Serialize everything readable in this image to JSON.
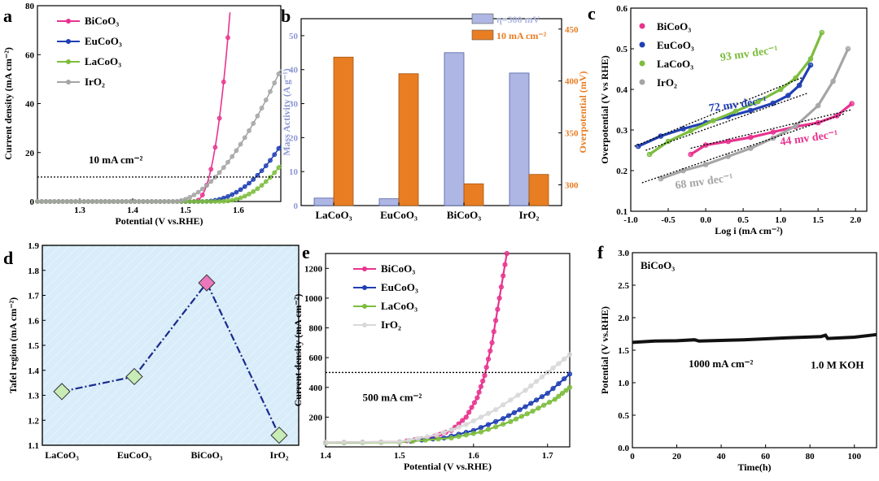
{
  "panels": [
    {
      "id": "a",
      "letter": "a",
      "type": "line",
      "xlabel": "Potential (V vs.RHE)",
      "ylabel": "Current density (mA cm⁻²)",
      "xlim": [
        1.22,
        1.68
      ],
      "ylim": [
        0,
        80
      ],
      "xticks": [
        1.3,
        1.4,
        1.5,
        1.6
      ],
      "yticks": [
        0,
        20,
        40,
        60,
        80
      ],
      "hline": 10,
      "annotation": {
        "text": "10 mA cm⁻²",
        "x": 1.24,
        "y": 17
      },
      "legend": {
        "position": "top-left",
        "entries": [
          "BiCoO₃",
          "EuCoO₃",
          "LaCoO₃",
          "IrO₂"
        ]
      },
      "series": [
        {
          "name": "BiCoO₃",
          "color": "#e8338f",
          "onset": 1.515,
          "end": 1.585,
          "final": 80,
          "exp": 2.4
        },
        {
          "name": "EuCoO₃",
          "color": "#1f3fb2",
          "onset": 1.53,
          "end": 1.68,
          "final": 23,
          "exp": 2.2
        },
        {
          "name": "LaCoO₃",
          "color": "#7dbd3e",
          "onset": 1.56,
          "end": 1.68,
          "final": 15,
          "exp": 2.3
        },
        {
          "name": "IrO₂",
          "color": "#a5a5a5",
          "onset": 1.48,
          "end": 1.68,
          "final": 54,
          "exp": 1.75
        }
      ]
    },
    {
      "id": "b",
      "letter": "b",
      "type": "bar",
      "categories": [
        "LaCoO₃",
        "EuCoO₃",
        "BiCoO₃",
        "IrO₂"
      ],
      "ylabel_left": "Mass Activity (A g⁻¹)",
      "ylabel_right": "Overpotential (mV)",
      "ylim_left": [
        0,
        55
      ],
      "ylim_right": [
        280,
        460
      ],
      "yticks_left": [
        0,
        10,
        20,
        30,
        40,
        50
      ],
      "yticks_right": [
        300,
        350,
        400,
        450
      ],
      "series": [
        {
          "name": "η=300 mV",
          "axis": "left",
          "values": [
            2.2,
            2.0,
            45,
            39
          ],
          "color": "#aeb6e3"
        },
        {
          "name": "10 mA cm⁻²",
          "axis": "right",
          "values": [
            423,
            407,
            301,
            310
          ],
          "color": "#e87d22"
        }
      ]
    },
    {
      "id": "c",
      "letter": "c",
      "type": "scatter",
      "xlabel": "Log i (mA cm⁻²)",
      "ylabel": "Overpotential (V vs RHE)",
      "xlim": [
        -1.0,
        2.15
      ],
      "ylim": [
        0.1,
        0.6
      ],
      "xticks": [
        -1.0,
        -0.5,
        0.0,
        0.5,
        1.0,
        1.5,
        2.0
      ],
      "yticks": [
        0.1,
        0.2,
        0.3,
        0.4,
        0.5,
        0.6
      ],
      "legend": {
        "position": "top-left",
        "entries": [
          "BiCoO₃",
          "EuCoO₃",
          "LaCoO₃",
          "IrO₂"
        ]
      },
      "series": [
        {
          "name": "BiCoO₃",
          "color": "#e8338f",
          "marker": "square",
          "points": [
            [
              -0.2,
              0.24
            ],
            [
              0.0,
              0.263
            ],
            [
              0.3,
              0.272
            ],
            [
              0.6,
              0.282
            ],
            [
              0.9,
              0.295
            ],
            [
              1.2,
              0.308
            ],
            [
              1.5,
              0.318
            ],
            [
              1.75,
              0.335
            ],
            [
              1.95,
              0.365
            ]
          ]
        },
        {
          "name": "EuCoO₃",
          "color": "#1f3fb2",
          "marker": "triangle-down",
          "points": [
            [
              -0.9,
              0.26
            ],
            [
              -0.6,
              0.285
            ],
            [
              -0.3,
              0.303
            ],
            [
              0.0,
              0.318
            ],
            [
              0.3,
              0.333
            ],
            [
              0.6,
              0.348
            ],
            [
              0.9,
              0.366
            ],
            [
              1.1,
              0.385
            ],
            [
              1.25,
              0.41
            ],
            [
              1.4,
              0.46
            ]
          ]
        },
        {
          "name": "LaCoO₃",
          "color": "#7dbd3e",
          "marker": "circle",
          "points": [
            [
              -0.75,
              0.24
            ],
            [
              -0.5,
              0.272
            ],
            [
              -0.2,
              0.298
            ],
            [
              0.1,
              0.323
            ],
            [
              0.4,
              0.346
            ],
            [
              0.7,
              0.37
            ],
            [
              1.0,
              0.4
            ],
            [
              1.2,
              0.428
            ],
            [
              1.4,
              0.475
            ],
            [
              1.55,
              0.54
            ]
          ]
        },
        {
          "name": "IrO₂",
          "color": "#a5a5a5",
          "marker": "triangle-up",
          "points": [
            [
              -0.6,
              0.18
            ],
            [
              -0.3,
              0.2
            ],
            [
              0.0,
              0.215
            ],
            [
              0.3,
              0.235
            ],
            [
              0.6,
              0.255
            ],
            [
              0.9,
              0.28
            ],
            [
              1.2,
              0.31
            ],
            [
              1.5,
              0.36
            ],
            [
              1.7,
              0.42
            ],
            [
              1.9,
              0.5
            ]
          ]
        }
      ],
      "fits": [
        {
          "from": [
            -0.2,
            0.255
          ],
          "to": [
            1.95,
            0.35
          ]
        },
        {
          "from": [
            -0.95,
            0.26
          ],
          "to": [
            1.3,
            0.43
          ]
        },
        {
          "from": [
            -0.8,
            0.25
          ],
          "to": [
            1.35,
            0.39
          ]
        },
        {
          "from": [
            -0.85,
            0.17
          ],
          "to": [
            1.85,
            0.34
          ]
        }
      ],
      "labels": [
        {
          "text": "93 mv dec⁻¹",
          "color": "#7dbd3e",
          "x": 0.2,
          "y": 0.47
        },
        {
          "text": "72 mv dec⁻¹",
          "color": "#1f3fb2",
          "x": 0.05,
          "y": 0.345
        },
        {
          "text": "44 mv dec⁻¹",
          "color": "#e8338f",
          "x": 1.0,
          "y": 0.262
        },
        {
          "text": "68 mv dec⁻¹",
          "color": "#a5a5a5",
          "x": -0.4,
          "y": 0.155
        }
      ]
    },
    {
      "id": "d",
      "letter": "d",
      "type": "line",
      "categories": [
        "LaCoO₃",
        "EuCoO₃",
        "BiCoO₃",
        "IrO₂"
      ],
      "values": [
        1.315,
        1.375,
        1.75,
        1.14
      ],
      "colors": [
        "#c8ecb6",
        "#c8ecb6",
        "#ea77bb",
        "#c8ecb6"
      ],
      "ylabel": "Tafel region (mA cm⁻²)",
      "ylim": [
        1.1,
        1.9
      ],
      "yticks": [
        1.1,
        1.2,
        1.3,
        1.4,
        1.5,
        1.6,
        1.7,
        1.8,
        1.9
      ],
      "line_color": "#1a2a8c",
      "background": "#d8ecf9"
    },
    {
      "id": "e",
      "letter": "e",
      "type": "line",
      "xlabel": "Potential (V vs.RHE)",
      "ylabel": "Current density (mA cm⁻²)",
      "xlim": [
        1.4,
        1.73
      ],
      "ylim": [
        0,
        1300
      ],
      "xticks": [
        1.4,
        1.5,
        1.6,
        1.7
      ],
      "yticks": [
        200,
        400,
        600,
        800,
        1000,
        1200
      ],
      "hline": 500,
      "annotation": {
        "text": "500 mA cm⁻²",
        "x": 1.45,
        "y": 330
      },
      "legend": {
        "position": "top-center",
        "entries": [
          "BiCoO₃",
          "EuCoO₃",
          "LaCoO₃",
          "IrO₂"
        ]
      },
      "series": [
        {
          "name": "BiCoO₃",
          "color": "#e8338f",
          "points": [
            [
              1.4,
              30
            ],
            [
              1.5,
              34
            ],
            [
              1.54,
              60
            ],
            [
              1.57,
              110
            ],
            [
              1.59,
              200
            ],
            [
              1.605,
              330
            ],
            [
              1.615,
              480
            ],
            [
              1.625,
              700
            ],
            [
              1.635,
              1000
            ],
            [
              1.645,
              1300
            ]
          ]
        },
        {
          "name": "EuCoO₃",
          "color": "#1f3fb2",
          "points": [
            [
              1.4,
              28
            ],
            [
              1.5,
              32
            ],
            [
              1.56,
              60
            ],
            [
              1.6,
              110
            ],
            [
              1.64,
              190
            ],
            [
              1.67,
              270
            ],
            [
              1.7,
              360
            ],
            [
              1.73,
              490
            ]
          ]
        },
        {
          "name": "LaCoO₃",
          "color": "#7dbd3e",
          "points": [
            [
              1.4,
              27
            ],
            [
              1.5,
              31
            ],
            [
              1.57,
              60
            ],
            [
              1.61,
              100
            ],
            [
              1.65,
              170
            ],
            [
              1.68,
              240
            ],
            [
              1.71,
              320
            ],
            [
              1.73,
              400
            ]
          ]
        },
        {
          "name": "IrO₂",
          "color": "#d8d8d8",
          "points": [
            [
              1.4,
              30
            ],
            [
              1.5,
              34
            ],
            [
              1.55,
              80
            ],
            [
              1.59,
              150
            ],
            [
              1.63,
              250
            ],
            [
              1.67,
              380
            ],
            [
              1.7,
              500
            ],
            [
              1.73,
              620
            ]
          ]
        }
      ]
    },
    {
      "id": "f",
      "letter": "f",
      "type": "line",
      "xlabel": "Time(h)",
      "ylabel": "Potential (V vs.RHE)",
      "xlim": [
        0,
        110
      ],
      "ylim": [
        0,
        3.0
      ],
      "xticks": [
        0,
        20,
        40,
        60,
        80,
        100
      ],
      "yticks": [
        0.0,
        0.5,
        1.0,
        1.5,
        2.0,
        2.5,
        3.0
      ],
      "title": "BiCoO₃",
      "annotations": [
        {
          "text": "1000 mA cm⁻²",
          "x": 7,
          "y": 1.24
        },
        {
          "text": "1.0 M KOH",
          "x": 62,
          "y": 1.22
        }
      ],
      "series": [
        {
          "name": "BiCoO₃",
          "color": "#111111",
          "points": [
            [
              0,
              1.62
            ],
            [
              10,
              1.64
            ],
            [
              20,
              1.645
            ],
            [
              28,
              1.66
            ],
            [
              30,
              1.64
            ],
            [
              50,
              1.66
            ],
            [
              70,
              1.69
            ],
            [
              85,
              1.71
            ],
            [
              87,
              1.73
            ],
            [
              88,
              1.68
            ],
            [
              100,
              1.7
            ],
            [
              110,
              1.74
            ]
          ]
        }
      ]
    }
  ]
}
